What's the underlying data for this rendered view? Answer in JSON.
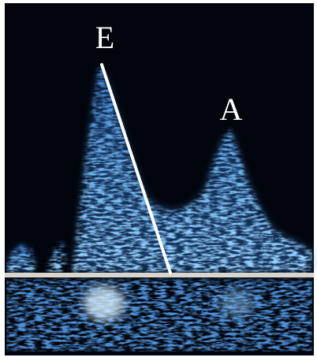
{
  "labels": {
    "e_wave": "E",
    "a_wave": "A"
  }
}
